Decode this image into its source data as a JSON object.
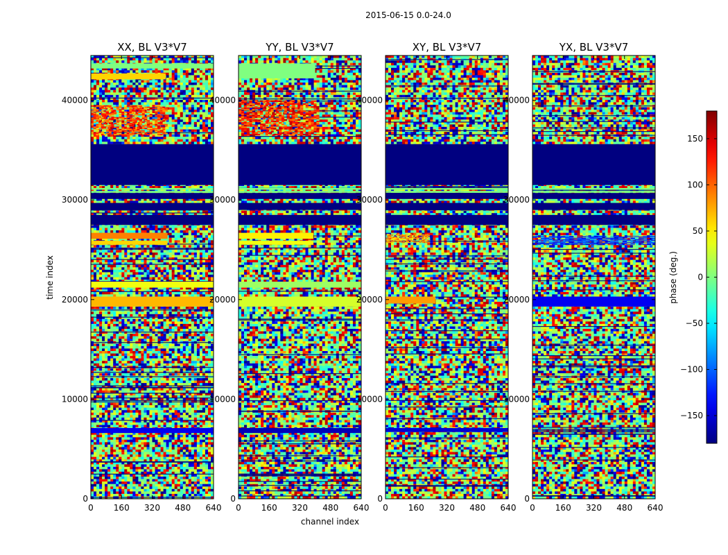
{
  "chart_data": {
    "type": "heatmap",
    "title": "2015-06-15 0.0-24.0",
    "xlabel": "channel index",
    "ylabel": "time index",
    "xlim": [
      0,
      640
    ],
    "ylim": [
      0,
      44500
    ],
    "x_ticks": [
      0,
      160,
      320,
      480,
      640
    ],
    "y_ticks": [
      0,
      10000,
      20000,
      30000,
      40000
    ],
    "colorbar": {
      "label": "phase (deg.)",
      "range": [
        -180,
        180
      ],
      "ticks": [
        -150,
        -100,
        -50,
        0,
        50,
        100,
        150
      ],
      "colormap": "jet"
    },
    "panels": [
      {
        "title": "XX, BL V3*V7",
        "bands": [
          {
            "y": [
              35600,
              31500
            ],
            "value": -180
          },
          {
            "y": [
              30700,
              30100
            ],
            "value": -180
          },
          {
            "y": [
              29700,
              29000
            ],
            "value": -180
          },
          {
            "y": [
              28500,
              27500
            ],
            "value": -180
          },
          {
            "y": [
              26700,
              26100
            ],
            "value": 90,
            "x": [
              0,
              400
            ]
          },
          {
            "y": [
              25900,
              25500
            ],
            "value": 60,
            "x": [
              0,
              400
            ]
          },
          {
            "y": [
              21800,
              21200
            ],
            "value": 40
          },
          {
            "y": [
              20300,
              19300
            ],
            "value": 70
          },
          {
            "y": [
              7100,
              6600
            ],
            "value": -140
          },
          {
            "y": [
              42700,
              42100
            ],
            "value": 60,
            "x": [
              0,
              390
            ]
          },
          {
            "y": [
              43700,
              43200
            ],
            "value": 0
          }
        ],
        "noise": [
          {
            "y": [
              39500,
              36500
            ],
            "value": 110,
            "x": [
              0,
              400
            ]
          }
        ]
      },
      {
        "title": "YY, BL V3*V7",
        "bands": [
          {
            "y": [
              35600,
              31500
            ],
            "value": -180
          },
          {
            "y": [
              30700,
              30100
            ],
            "value": -180
          },
          {
            "y": [
              29700,
              29000
            ],
            "value": -180
          },
          {
            "y": [
              28500,
              27500
            ],
            "value": -180
          },
          {
            "y": [
              26700,
              26100
            ],
            "value": 50,
            "x": [
              0,
              390
            ]
          },
          {
            "y": [
              25900,
              25500
            ],
            "value": 40,
            "x": [
              0,
              390
            ]
          },
          {
            "y": [
              21800,
              21200
            ],
            "value": 10
          },
          {
            "y": [
              20300,
              19300
            ],
            "value": 30
          },
          {
            "y": [
              7100,
              6600
            ],
            "value": -160
          },
          {
            "y": [
              43700,
              42200
            ],
            "value": 0,
            "x": [
              0,
              400
            ]
          }
        ],
        "noise": [
          {
            "y": [
              40000,
              36500
            ],
            "value": 120,
            "x": [
              0,
              420
            ]
          }
        ]
      },
      {
        "title": "XY, BL V3*V7",
        "bands": [
          {
            "y": [
              35600,
              31500
            ],
            "value": -180
          },
          {
            "y": [
              30700,
              30100
            ],
            "value": -180
          },
          {
            "y": [
              29700,
              29000
            ],
            "value": -180
          },
          {
            "y": [
              28500,
              27500
            ],
            "value": -180
          },
          {
            "y": [
              20300,
              19600
            ],
            "value": 80,
            "x": [
              0,
              260
            ]
          },
          {
            "y": [
              7100,
              6700
            ],
            "value": -150
          }
        ],
        "noise": [
          {
            "y": [
              26600,
              25700
            ],
            "value": 80,
            "x": [
              0,
              230
            ]
          }
        ]
      },
      {
        "title": "YX, BL V3*V7",
        "bands": [
          {
            "y": [
              35600,
              31500
            ],
            "value": -180
          },
          {
            "y": [
              30700,
              30100
            ],
            "value": -180
          },
          {
            "y": [
              29700,
              29000
            ],
            "value": -180
          },
          {
            "y": [
              28500,
              27500
            ],
            "value": -180
          },
          {
            "y": [
              20300,
              19300
            ],
            "value": -140
          }
        ],
        "noise": [
          {
            "y": [
              26400,
              25500
            ],
            "value": -120
          }
        ]
      }
    ]
  }
}
